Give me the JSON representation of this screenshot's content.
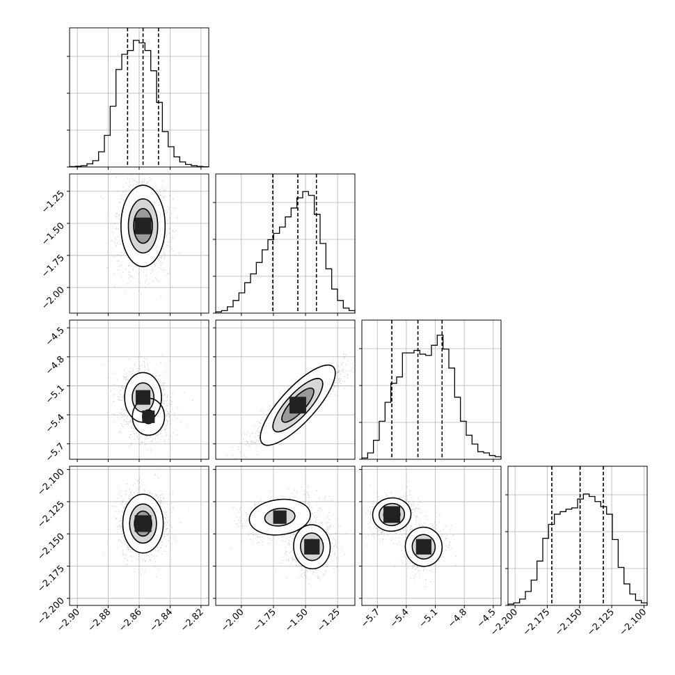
{
  "chart_data": {
    "type": "corner",
    "grid": true,
    "parameters": [
      {
        "range": [
          -2.905,
          -2.815
        ],
        "ticks": [
          -2.9,
          -2.88,
          -2.86,
          -2.84,
          -2.82
        ],
        "tick_labels": [
          "−2.90",
          "−2.88",
          "−2.86",
          "−2.84",
          "−2.82"
        ],
        "quantiles": [
          -2.8675,
          -2.8575,
          -2.8475
        ]
      },
      {
        "range": [
          -2.2,
          -1.115
        ],
        "ticks": [
          -2.0,
          -1.75,
          -1.5,
          -1.25
        ],
        "tick_labels": [
          "−2.00",
          "−1.75",
          "−1.50",
          "−1.25"
        ],
        "quantiles": [
          -1.755,
          -1.56,
          -1.415
        ]
      },
      {
        "range": [
          -5.86,
          -4.42
        ],
        "ticks": [
          -5.7,
          -5.4,
          -5.1,
          -4.8,
          -4.5
        ],
        "tick_labels": [
          "−5.7",
          "−5.4",
          "−5.1",
          "−4.8",
          "−4.5"
        ],
        "quantiles": [
          -5.55,
          -5.28,
          -5.03
        ]
      },
      {
        "range": [
          -2.2055,
          -2.0975
        ],
        "ticks": [
          -2.2,
          -2.175,
          -2.15,
          -2.125,
          -2.1
        ],
        "tick_labels": [
          "−2.200",
          "−2.175",
          "−2.150",
          "−2.125",
          "−2.100"
        ],
        "quantiles": [
          -2.1715,
          -2.1495,
          -2.1315
        ]
      }
    ],
    "histograms": [
      [
        0.003,
        0.006,
        0.01,
        0.025,
        0.05,
        0.12,
        0.25,
        0.48,
        0.77,
        0.89,
        0.92,
        1.0,
        0.98,
        0.92,
        0.76,
        0.51,
        0.28,
        0.16,
        0.08,
        0.04,
        0.02,
        0.01,
        0.005,
        0.002
      ],
      [
        0.01,
        0.02,
        0.05,
        0.1,
        0.16,
        0.24,
        0.31,
        0.4,
        0.5,
        0.58,
        0.63,
        0.68,
        0.76,
        0.83,
        0.91,
        0.96,
        0.93,
        0.78,
        0.55,
        0.35,
        0.19,
        0.1,
        0.04,
        0.02
      ],
      [
        0.01,
        0.05,
        0.15,
        0.3,
        0.45,
        0.6,
        0.65,
        0.84,
        0.84,
        0.86,
        0.83,
        0.82,
        0.9,
        0.98,
        0.87,
        0.72,
        0.49,
        0.3,
        0.19,
        0.12,
        0.06,
        0.05,
        0.03,
        0.02
      ],
      [
        0.01,
        0.02,
        0.05,
        0.11,
        0.2,
        0.35,
        0.53,
        0.64,
        0.72,
        0.74,
        0.76,
        0.77,
        0.84,
        0.88,
        0.86,
        0.82,
        0.78,
        0.72,
        0.52,
        0.3,
        0.17,
        0.09,
        0.04,
        0.02
      ]
    ],
    "pairs": [
      {
        "x": 0,
        "y": 1,
        "modes": [
          {
            "x": -2.8575,
            "y": -1.52,
            "w": 1.0,
            "sx": 0.0072,
            "sy": 0.16,
            "rho": 0.0
          }
        ]
      },
      {
        "x": 0,
        "y": 2,
        "modes": [
          {
            "x": -2.8575,
            "y": -5.22,
            "w": 0.75,
            "sx": 0.0065,
            "sy": 0.14,
            "rho": 0.0
          },
          {
            "x": -2.854,
            "y": -5.42,
            "w": 0.5,
            "sx": 0.0065,
            "sy": 0.12,
            "rho": 0.0
          }
        ]
      },
      {
        "x": 1,
        "y": 2,
        "modes": [
          {
            "x": -1.56,
            "y": -5.3,
            "w": 1.0,
            "sx": 0.16,
            "sy": 0.17,
            "rho": 0.92
          }
        ]
      },
      {
        "x": 0,
        "y": 3,
        "modes": [
          {
            "x": -2.8575,
            "y": -2.142,
            "w": 1.0,
            "sx": 0.0066,
            "sy": 0.0115,
            "rho": 0.0
          }
        ]
      },
      {
        "x": 1,
        "y": 3,
        "modes": [
          {
            "x": -1.7,
            "y": -2.137,
            "w": 0.6,
            "sx": 0.14,
            "sy": 0.008,
            "rho": 0.3
          },
          {
            "x": -1.45,
            "y": -2.16,
            "w": 0.85,
            "sx": 0.075,
            "sy": 0.009,
            "rho": 0.1
          }
        ]
      },
      {
        "x": 2,
        "y": 3,
        "modes": [
          {
            "x": -5.55,
            "y": -2.135,
            "w": 1.0,
            "sx": 0.1,
            "sy": 0.0065,
            "rho": 0.2
          },
          {
            "x": -5.22,
            "y": -2.16,
            "w": 0.85,
            "sx": 0.1,
            "sy": 0.008,
            "rho": 0.2
          }
        ]
      }
    ],
    "colors": {
      "contour": "#000000",
      "points": "#6f6f6f",
      "grid": "#b0b0b0"
    }
  }
}
